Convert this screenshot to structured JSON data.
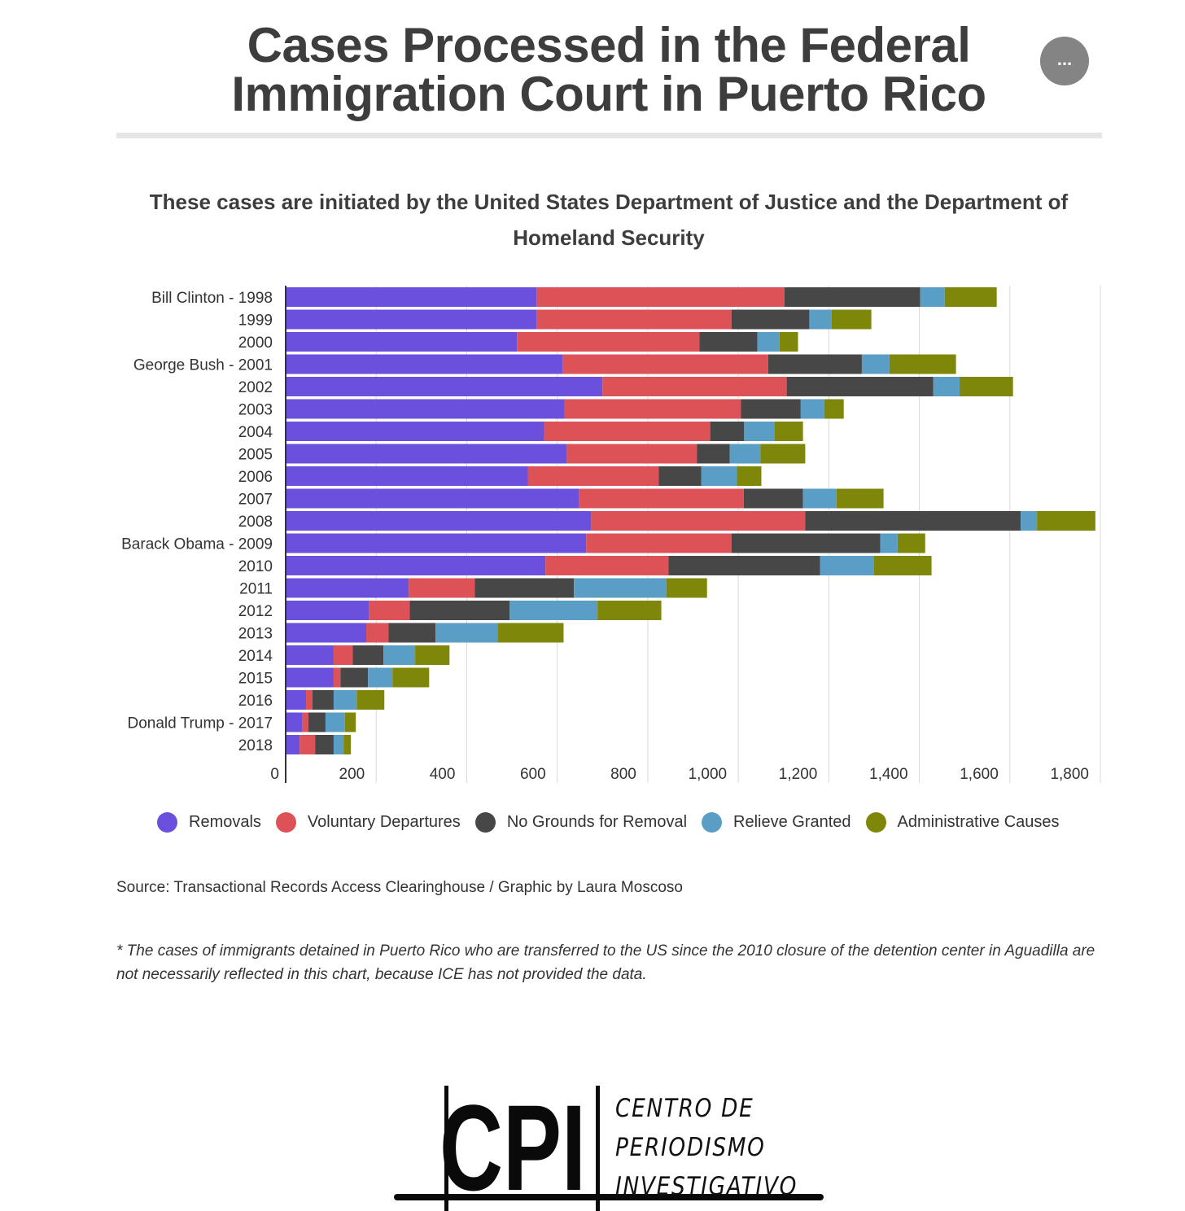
{
  "title": "Cases Processed in the Federal Immigration Court in Puerto Rico",
  "menu_button": "...",
  "subtitle": "These cases are initiated by the United States Department of Justice and the Department of Homeland Security",
  "source": "Source: Transactional Records Access Clearinghouse / Graphic by Laura Moscoso",
  "note": "* The cases of immigrants detained in Puerto Rico who are transferred to the US since the 2010 closure of the detention center in Aguadilla are not necessarily reflected in this chart, because ICE has not provided the data.",
  "logo": {
    "letters": "CPI",
    "line1": "CENTRO DE",
    "line2": "PERIODISMO",
    "line3": "INVESTIGATIVO"
  },
  "chart_data": {
    "type": "bar",
    "orientation": "horizontal",
    "stacked": true,
    "title": "Cases Processed in the Federal Immigration Court in Puerto Rico",
    "categories": [
      "Bill Clinton - 1998",
      "1999",
      "2000",
      "George Bush - 2001",
      "2002",
      "2003",
      "2004",
      "2005",
      "2006",
      "2007",
      "2008",
      "Barack Obama - 2009",
      "2010",
      "2011",
      "2012",
      "2013",
      "2014",
      "2015",
      "2016",
      "Donald Trump - 2017",
      "2018"
    ],
    "series": [
      {
        "name": "Removals",
        "color": "#6a50dc",
        "values": [
          554,
          554,
          511,
          612,
          700,
          616,
          571,
          621,
          535,
          648,
          675,
          664,
          574,
          272,
          184,
          178,
          106,
          106,
          45,
          36,
          31
        ]
      },
      {
        "name": "Voluntary Departures",
        "color": "#dd5257",
        "values": [
          548,
          431,
          403,
          454,
          407,
          390,
          367,
          288,
          289,
          364,
          473,
          321,
          272,
          146,
          90,
          49,
          42,
          15,
          14,
          14,
          34
        ]
      },
      {
        "name": "No Grounds for Removal",
        "color": "#474747",
        "values": [
          300,
          172,
          128,
          207,
          324,
          132,
          75,
          72,
          94,
          131,
          476,
          329,
          335,
          219,
          221,
          104,
          68,
          61,
          47,
          38,
          41
        ]
      },
      {
        "name": "Relieve Granted",
        "color": "#5a9ec6",
        "values": [
          54,
          49,
          49,
          61,
          58,
          52,
          67,
          68,
          79,
          74,
          36,
          38,
          119,
          204,
          194,
          137,
          70,
          54,
          51,
          43,
          22
        ]
      },
      {
        "name": "Administrative Causes",
        "color": "#7f870a",
        "values": [
          115,
          88,
          41,
          147,
          118,
          43,
          63,
          99,
          54,
          104,
          129,
          61,
          127,
          90,
          141,
          146,
          76,
          81,
          61,
          24,
          16
        ]
      }
    ],
    "xlim": [
      0,
      1800
    ],
    "xticks": [
      0,
      200,
      400,
      600,
      800,
      1000,
      1200,
      1400,
      1600,
      1800
    ],
    "xtick_labels": [
      "0",
      "200",
      "400",
      "600",
      "800",
      "1,000",
      "1,200",
      "1,400",
      "1,600",
      "1,800"
    ],
    "grid": true,
    "legend": "bottom"
  }
}
